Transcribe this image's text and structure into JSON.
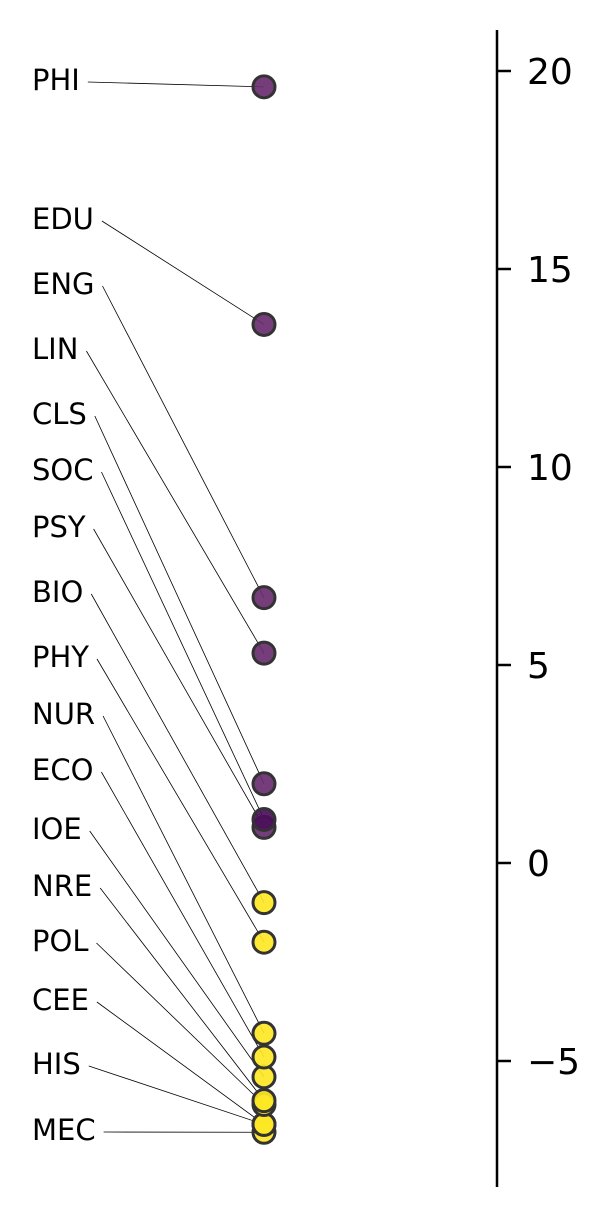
{
  "chart_data": {
    "type": "scatter",
    "title": "",
    "xlabel": "",
    "ylabel": "",
    "ylim": [
      -8.1,
      21.0
    ],
    "yticks": [
      -5,
      0,
      5,
      10,
      15,
      20
    ],
    "ytick_labels": [
      "−5",
      "0",
      "5",
      "10",
      "15",
      "20"
    ],
    "grid": false,
    "legend": "none",
    "colors": {
      "purple": "#6a2c70",
      "dark_purple": "#4a0f5a",
      "yellow": "#fde725",
      "edge": "#333333",
      "axis": "#000000"
    },
    "points": [
      {
        "label": "PHI",
        "value": 19.6,
        "color": "purple"
      },
      {
        "label": "EDU",
        "value": 13.6,
        "color": "purple"
      },
      {
        "label": "ENG",
        "value": 6.7,
        "color": "purple"
      },
      {
        "label": "LIN",
        "value": 5.3,
        "color": "purple"
      },
      {
        "label": "CLS",
        "value": 2.0,
        "color": "purple"
      },
      {
        "label": "SOC",
        "value": 1.1,
        "color": "dark_purple"
      },
      {
        "label": "PSY",
        "value": 0.9,
        "color": "purple"
      },
      {
        "label": "BIO",
        "value": -1.0,
        "color": "yellow"
      },
      {
        "label": "PHY",
        "value": -2.0,
        "color": "yellow"
      },
      {
        "label": "NUR",
        "value": -4.3,
        "color": "yellow"
      },
      {
        "label": "ECO",
        "value": -4.9,
        "color": "yellow"
      },
      {
        "label": "IOE",
        "value": -5.4,
        "color": "yellow"
      },
      {
        "label": "NRE",
        "value": -6.0,
        "color": "yellow"
      },
      {
        "label": "POL",
        "value": -6.1,
        "color": "yellow"
      },
      {
        "label": "CEE",
        "value": -6.6,
        "color": "yellow"
      },
      {
        "label": "HIS",
        "value": -6.6,
        "color": "yellow"
      },
      {
        "label": "MEC",
        "value": -6.8,
        "color": "yellow"
      }
    ]
  }
}
